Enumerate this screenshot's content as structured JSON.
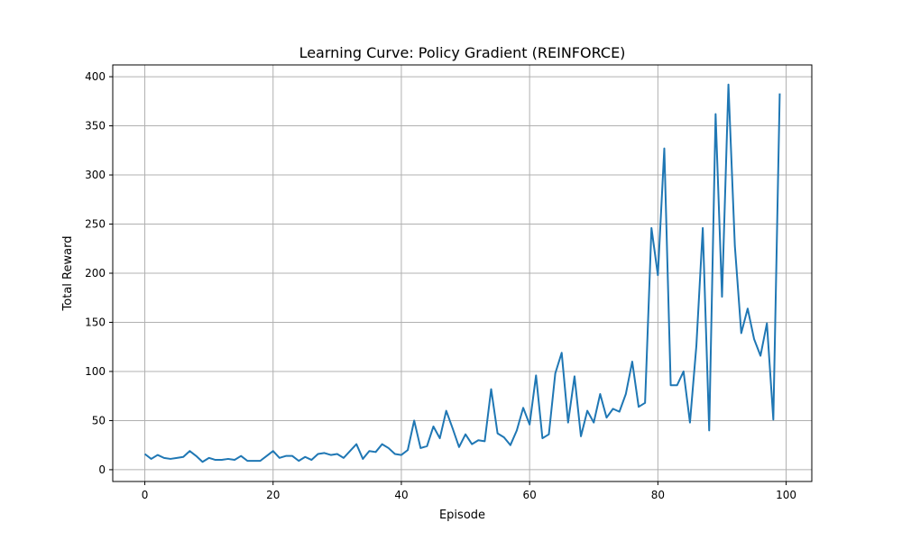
{
  "chart_data": {
    "type": "line",
    "title": "Learning Curve: Policy Gradient (REINFORCE)",
    "xlabel": "Episode",
    "ylabel": "Total Reward",
    "xlim": [
      -5,
      104
    ],
    "ylim": [
      -12,
      412
    ],
    "xticks": [
      0,
      20,
      40,
      60,
      80,
      100
    ],
    "yticks": [
      0,
      50,
      100,
      150,
      200,
      250,
      300,
      350,
      400
    ],
    "grid": true,
    "series": [
      {
        "color": "#1f77b4",
        "x": [
          0,
          1,
          2,
          3,
          4,
          5,
          6,
          7,
          8,
          9,
          10,
          11,
          12,
          13,
          14,
          15,
          16,
          17,
          18,
          19,
          20,
          21,
          22,
          23,
          24,
          25,
          26,
          27,
          28,
          29,
          30,
          31,
          32,
          33,
          34,
          35,
          36,
          37,
          38,
          39,
          40,
          41,
          42,
          43,
          44,
          45,
          46,
          47,
          48,
          49,
          50,
          51,
          52,
          53,
          54,
          55,
          56,
          57,
          58,
          59,
          60,
          61,
          62,
          63,
          64,
          65,
          66,
          67,
          68,
          69,
          70,
          71,
          72,
          73,
          74,
          75,
          76,
          77,
          78,
          79,
          80,
          81,
          82,
          83,
          84,
          85,
          86,
          87,
          88,
          89,
          90,
          91,
          92,
          93,
          94,
          95,
          96,
          97,
          98,
          99
        ],
        "y": [
          16,
          11,
          15,
          12,
          11,
          12,
          13,
          19,
          14,
          8,
          12,
          10,
          10,
          11,
          10,
          14,
          9,
          9,
          9,
          14,
          19,
          12,
          14,
          14,
          9,
          13,
          10,
          16,
          17,
          15,
          16,
          12,
          19,
          26,
          11,
          19,
          18,
          26,
          22,
          16,
          15,
          20,
          50,
          22,
          24,
          44,
          32,
          60,
          42,
          23,
          36,
          26,
          30,
          29,
          82,
          37,
          33,
          25,
          40,
          63,
          46,
          96,
          32,
          36,
          98,
          119,
          48,
          95,
          34,
          60,
          48,
          77,
          53,
          62,
          59,
          77,
          110,
          64,
          68,
          246,
          198,
          327,
          86,
          86,
          100,
          48,
          126,
          246,
          40,
          362,
          176,
          392,
          228,
          139,
          164,
          133,
          116,
          149,
          51,
          383
        ]
      }
    ]
  }
}
